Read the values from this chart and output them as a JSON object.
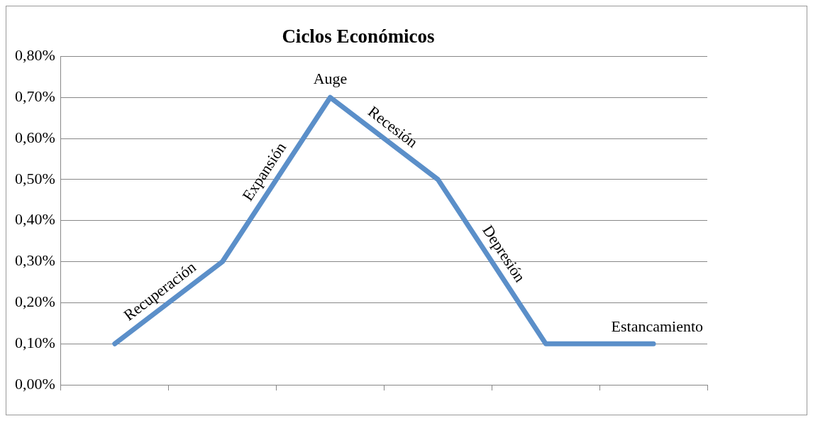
{
  "chart_data": {
    "type": "line",
    "title": "Ciclos Económicos",
    "categories": [
      null,
      null,
      null,
      null,
      null,
      null
    ],
    "series": [
      {
        "color": "#5b8fc9",
        "values": [
          0.1,
          0.3,
          0.7,
          0.5,
          0.1,
          0.1
        ]
      }
    ],
    "ylim": [
      0,
      0.8
    ],
    "yticks": [
      {
        "value": 0,
        "label": "0,00%"
      },
      {
        "value": 0.1,
        "label": "0,10%"
      },
      {
        "value": 0.2,
        "label": "0,20%"
      },
      {
        "value": 0.3,
        "label": "0,30%"
      },
      {
        "value": 0.4,
        "label": "0,40%"
      },
      {
        "value": 0.5,
        "label": "0,50%"
      },
      {
        "value": 0.6,
        "label": "0,60%"
      },
      {
        "value": 0.7,
        "label": "0,70%"
      },
      {
        "value": 0.8,
        "label": "0,80%"
      }
    ],
    "grid": "y",
    "legend": false,
    "marker": "none",
    "annotations": [
      "Recuperación",
      "Expansión",
      "Auge",
      "Recesión",
      "Depresión",
      "Estancamiento"
    ]
  }
}
